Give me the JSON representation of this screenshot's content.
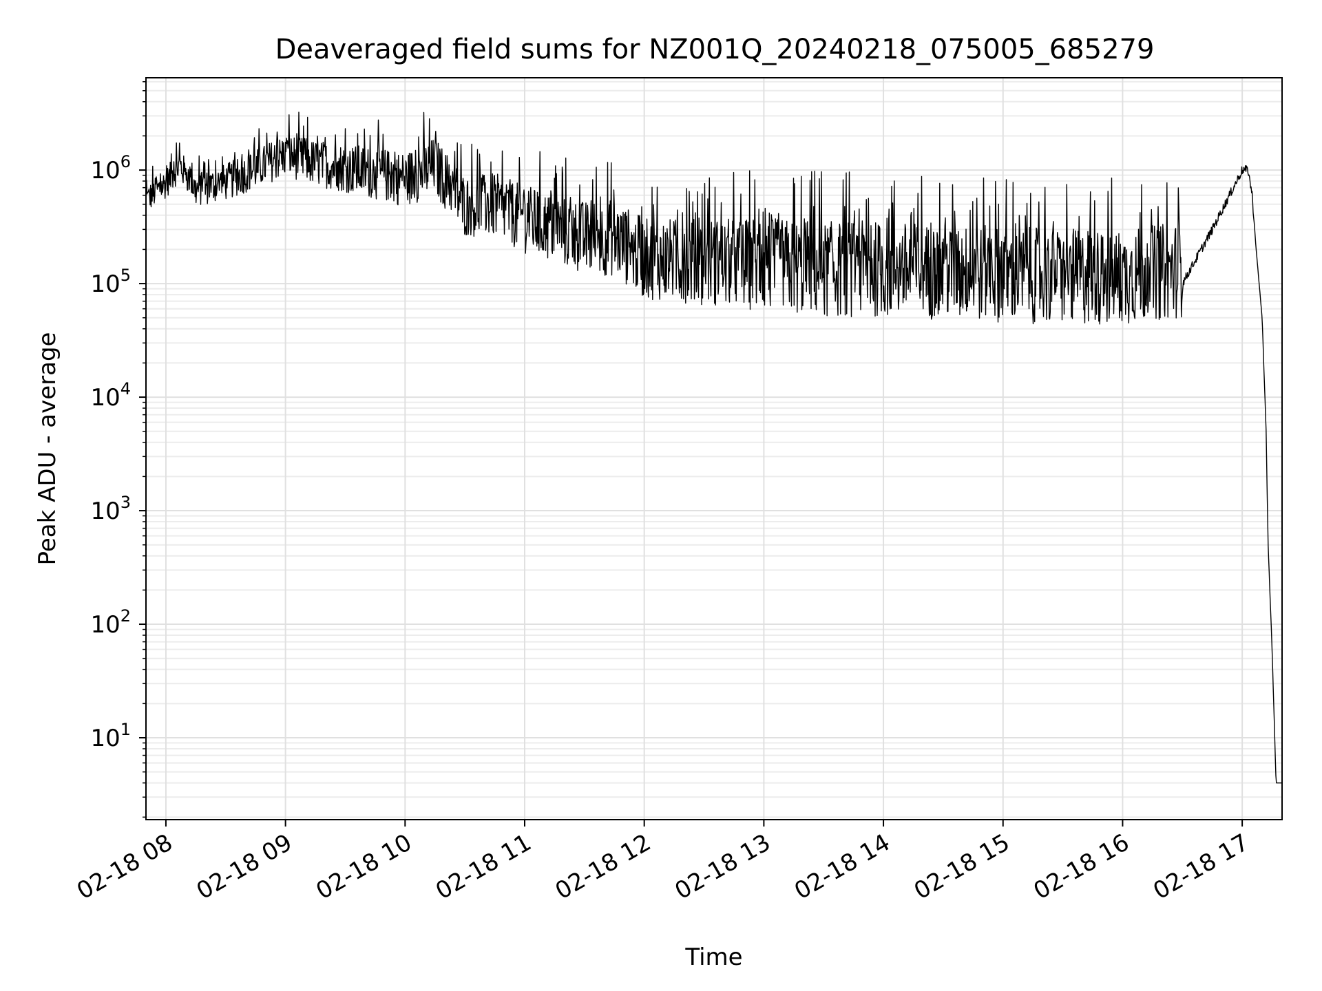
{
  "chart_data": {
    "type": "line",
    "title": "Deaveraged field sums for NZ001Q_20240218_075005_685279",
    "xlabel": "Time",
    "ylabel": "Peak ADU - average",
    "yscale": "log",
    "ylim": [
      1.9,
      6500000
    ],
    "xlim": [
      "2024-02-18 07:50",
      "2024-02-18 17:20"
    ],
    "grid": "major and minor",
    "x_ticks": [
      "02-18 08",
      "02-18 09",
      "02-18 10",
      "02-18 11",
      "02-18 12",
      "02-18 13",
      "02-18 14",
      "02-18 15",
      "02-18 16",
      "02-18 17"
    ],
    "y_ticks": [
      {
        "base": "10",
        "exp": "1",
        "value": 10
      },
      {
        "base": "10",
        "exp": "2",
        "value": 100
      },
      {
        "base": "10",
        "exp": "3",
        "value": 1000
      },
      {
        "base": "10",
        "exp": "4",
        "value": 10000
      },
      {
        "base": "10",
        "exp": "5",
        "value": 100000
      },
      {
        "base": "10",
        "exp": "6",
        "value": 1000000
      }
    ],
    "series": [
      {
        "color": "#000000",
        "x": [
          "2024-02-18 07:50",
          "2024-02-18 08:00",
          "2024-02-18 08:07",
          "2024-02-18 08:15",
          "2024-02-18 08:30",
          "2024-02-18 08:45",
          "2024-02-18 09:00",
          "2024-02-18 09:15",
          "2024-02-18 09:30",
          "2024-02-18 09:45",
          "2024-02-18 10:00",
          "2024-02-18 10:15",
          "2024-02-18 10:30",
          "2024-02-18 10:45",
          "2024-02-18 11:00",
          "2024-02-18 11:15",
          "2024-02-18 11:30",
          "2024-02-18 11:45",
          "2024-02-18 12:00",
          "2024-02-18 12:30",
          "2024-02-18 13:00",
          "2024-02-18 13:30",
          "2024-02-18 14:00",
          "2024-02-18 14:30",
          "2024-02-18 15:00",
          "2024-02-18 15:30",
          "2024-02-18 16:00",
          "2024-02-18 16:30",
          "2024-02-18 16:45",
          "2024-02-18 17:00",
          "2024-02-18 17:03",
          "2024-02-18 17:05",
          "2024-02-18 17:07",
          "2024-02-18 17:10",
          "2024-02-18 17:12",
          "2024-02-18 17:13",
          "2024-02-18 17:15",
          "2024-02-18 17:17",
          "2024-02-18 17:20"
        ],
        "y": [
          500000,
          700000,
          1000000,
          600000,
          700000,
          900000,
          1200000,
          1000000,
          900000,
          800000,
          700000,
          900000,
          400000,
          400000,
          300000,
          250000,
          200000,
          200000,
          130000,
          120000,
          110000,
          100000,
          100000,
          95000,
          90000,
          85000,
          85000,
          100000,
          300000,
          1000000,
          1000000,
          600000,
          200000,
          50000,
          5000,
          500,
          60,
          4,
          4
        ]
      }
    ]
  }
}
